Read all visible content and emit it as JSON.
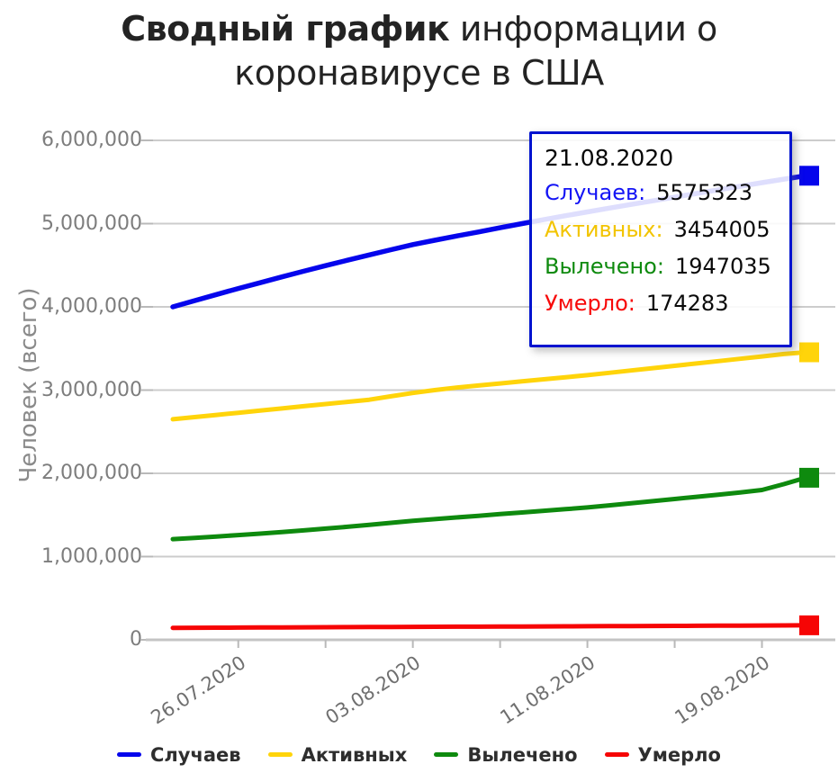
{
  "title": {
    "bold": "Сводный график",
    "rest": " информации о коронавирусе в США"
  },
  "y_axis": {
    "label": "Человек (всего)",
    "tick_labels": [
      "6,000,000",
      "5,000,000",
      "4,000,000",
      "3,000,000",
      "2,000,000",
      "1,000,000",
      "0"
    ],
    "tick_values": [
      6000000,
      5000000,
      4000000,
      3000000,
      2000000,
      1000000,
      0
    ]
  },
  "x_axis": {
    "labels": [
      "26.07.2020",
      "03.08.2020",
      "11.08.2020",
      "19.08.2020"
    ]
  },
  "tooltip": {
    "date": "21.08.2020",
    "rows": [
      {
        "label": "Случаев:",
        "value": "5575323",
        "color": "#1414f5"
      },
      {
        "label": "Активных:",
        "value": "3454005",
        "color": "#f2c400"
      },
      {
        "label": "Вылечено:",
        "value": "1947035",
        "color": "#0e8a0e"
      },
      {
        "label": "Умерло:",
        "value": "174283",
        "color": "#f70808"
      }
    ]
  },
  "legend": [
    {
      "label": "Случаев",
      "color": "#0505ec"
    },
    {
      "label": "Активных",
      "color": "#ffd40a"
    },
    {
      "label": "Вылечено",
      "color": "#0e8a0e"
    },
    {
      "label": "Умерло",
      "color": "#f60505"
    }
  ],
  "colors": {
    "grid": "#cccccc",
    "axis_line": "#c4c4c4",
    "tick": "#b9b9b9",
    "tooltip_border": "#0013cf",
    "title_text": "#232323",
    "axis_text": "#7d7d7d"
  },
  "chart_data": {
    "type": "line",
    "title": "Сводный график информации о коронавирусе в США",
    "xlabel": "",
    "ylabel": "Человек (всего)",
    "ylim": [
      0,
      6000000
    ],
    "grid": true,
    "legend_position": "bottom",
    "x": [
      "23.07.2020",
      "24.07.2020",
      "25.07.2020",
      "26.07.2020",
      "27.07.2020",
      "28.07.2020",
      "29.07.2020",
      "30.07.2020",
      "31.07.2020",
      "01.08.2020",
      "02.08.2020",
      "03.08.2020",
      "04.08.2020",
      "05.08.2020",
      "06.08.2020",
      "07.08.2020",
      "08.08.2020",
      "09.08.2020",
      "10.08.2020",
      "11.08.2020",
      "12.08.2020",
      "13.08.2020",
      "14.08.2020",
      "15.08.2020",
      "16.08.2020",
      "17.08.2020",
      "18.08.2020",
      "19.08.2020",
      "20.08.2020",
      "21.08.2020"
    ],
    "x_tick_indices": [
      3,
      7,
      11,
      15,
      19,
      23,
      27
    ],
    "x_label_indices": [
      3,
      11,
      19,
      27
    ],
    "series": [
      {
        "name": "Случаев",
        "color": "#0505ec",
        "width": 5.5,
        "values": [
          4000000,
          4075000,
          4148000,
          4220000,
          4290000,
          4360000,
          4428000,
          4495000,
          4560000,
          4624000,
          4687000,
          4748000,
          4800000,
          4851000,
          4900000,
          4950000,
          5000000,
          5048000,
          5095000,
          5141000,
          5186000,
          5230000,
          5274000,
          5318000,
          5362000,
          5406000,
          5449000,
          5492000,
          5534000,
          5575323
        ]
      },
      {
        "name": "Активных",
        "color": "#ffd40a",
        "width": 5,
        "values": [
          2650000,
          2676000,
          2702000,
          2728000,
          2754000,
          2780000,
          2806000,
          2832000,
          2858000,
          2884000,
          2925000,
          2965000,
          3000000,
          3030000,
          3055000,
          3080000,
          3105000,
          3130000,
          3155000,
          3180000,
          3208000,
          3236000,
          3264000,
          3292000,
          3320000,
          3348000,
          3376000,
          3404000,
          3434000,
          3454005
        ]
      },
      {
        "name": "Вылечено",
        "color": "#0e8a0e",
        "width": 5,
        "values": [
          1210000,
          1225000,
          1241000,
          1258000,
          1276000,
          1295000,
          1315000,
          1336000,
          1358000,
          1381000,
          1405000,
          1430000,
          1450000,
          1470000,
          1490000,
          1510000,
          1530000,
          1550000,
          1570000,
          1590000,
          1615000,
          1640000,
          1666000,
          1692000,
          1718000,
          1744000,
          1770000,
          1800000,
          1870000,
          1947035
        ]
      },
      {
        "name": "Умерло",
        "color": "#f60505",
        "width": 5,
        "values": [
          144000,
          145100,
          146200,
          147300,
          148400,
          149500,
          150500,
          151500,
          152500,
          153500,
          154500,
          155500,
          156400,
          157300,
          158200,
          159100,
          160000,
          161000,
          162000,
          163000,
          164000,
          165000,
          166000,
          167100,
          168200,
          169300,
          170400,
          171600,
          172900,
          174283
        ]
      }
    ]
  }
}
